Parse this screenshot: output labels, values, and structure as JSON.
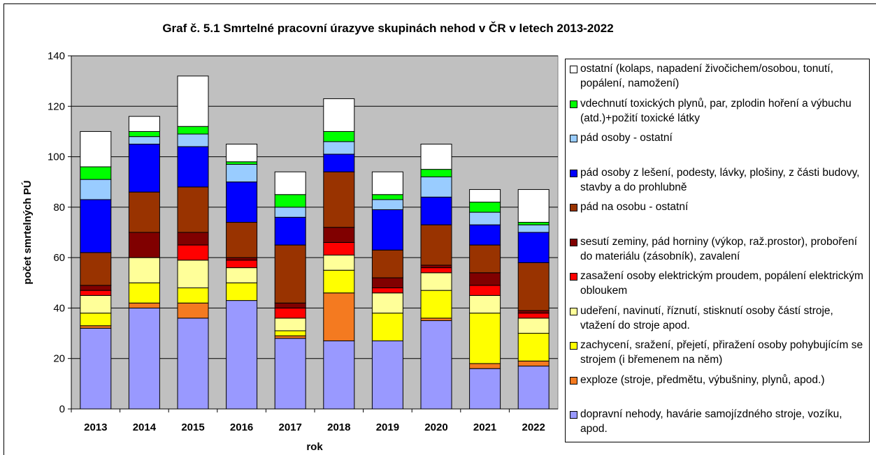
{
  "chart_data": {
    "type": "stacked_bar",
    "title": "Graf č. 5.1 Smrtelné pracovní úrazyve skupinách nehod v ČR v letech 2013-2022",
    "x_label": "rok",
    "y_label": "počet smrtelných PÚ",
    "categories": [
      "2013",
      "2014",
      "2015",
      "2016",
      "2017",
      "2018",
      "2019",
      "2020",
      "2021",
      "2022"
    ],
    "ylim": [
      0,
      140
    ],
    "yticks": [
      0,
      20,
      40,
      60,
      80,
      100,
      120,
      140
    ],
    "grid": true,
    "legend": "right",
    "series": [
      {
        "name": "dopravní nehody, havárie samojízdného stroje, vozíku, apod.",
        "color": "#9999ff",
        "values": [
          32,
          40,
          36,
          43,
          28,
          27,
          27,
          35,
          16,
          17
        ]
      },
      {
        "name": "exploze (stroje, předmětu, výbušniny, plynů, apod.)",
        "color": "#f47a20",
        "values": [
          1,
          2,
          6,
          0,
          1,
          19,
          0,
          1,
          2,
          2
        ]
      },
      {
        "name": "zachycení, sražení, přejetí, přiražení osoby pohybujícím se strojem (i břemenem na něm)",
        "color": "#ffff00",
        "values": [
          5,
          8,
          6,
          7,
          2,
          9,
          11,
          11,
          20,
          11
        ]
      },
      {
        "name": "udeření, navinutí, říznutí, stisknutí osoby částí stroje, vtažení do stroje apod.",
        "color": "#ffff99",
        "values": [
          7,
          10,
          11,
          6,
          5,
          6,
          8,
          7,
          7,
          6
        ]
      },
      {
        "name": "zasažení osoby elektrickým proudem, popálení elektrickým obloukem",
        "color": "#ff0000",
        "values": [
          2,
          0,
          6,
          3,
          4,
          5,
          2,
          2,
          4,
          2
        ]
      },
      {
        "name": "sesutí zeminy, pád horniny (výkop, raž.prostor), proboření do materiálu (zásobník), zavalení",
        "color": "#800000",
        "values": [
          2,
          10,
          5,
          1,
          2,
          6,
          4,
          1,
          5,
          1
        ]
      },
      {
        "name": "pád na osobu - ostatní",
        "color": "#993300",
        "values": [
          13,
          16,
          18,
          14,
          23,
          22,
          11,
          16,
          11,
          19
        ]
      },
      {
        "name": "pád osoby z lešení, podesty, lávky, plošiny, z části budovy, stavby a do prohlubně",
        "color": "#0000ff",
        "values": [
          21,
          19,
          16,
          16,
          11,
          7,
          16,
          11,
          8,
          12
        ]
      },
      {
        "name": "pád osoby - ostatní",
        "color": "#99ccff",
        "values": [
          8,
          3,
          5,
          7,
          4,
          5,
          4,
          8,
          5,
          3
        ]
      },
      {
        "name": "vdechnutí toxických plynů, par, zplodin hoření a výbuchu (atd.)+požití toxické látky",
        "color": "#00ff00",
        "values": [
          5,
          2,
          3,
          1,
          5,
          4,
          2,
          3,
          4,
          1
        ]
      },
      {
        "name": "ostatní (kolaps, napadení živočichem/osobou, tonutí, popálení, namožení)",
        "color": "#ffffff",
        "values": [
          14,
          6,
          20,
          7,
          9,
          13,
          9,
          10,
          5,
          13
        ]
      }
    ]
  }
}
